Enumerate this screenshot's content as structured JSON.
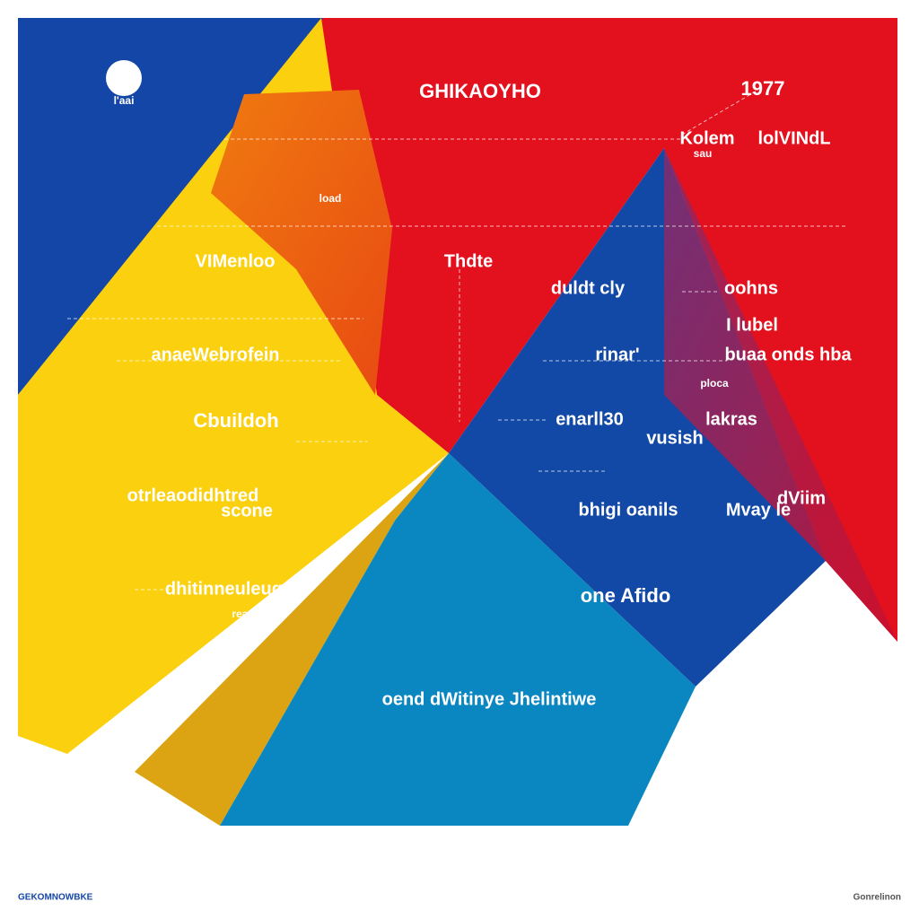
{
  "header": {
    "title": "GHIKAOYHO",
    "year": "1977",
    "logo_caption": "l'aai",
    "side_top": "Kolem",
    "side_sub": "sau",
    "side_right": "lolVINdL"
  },
  "labels": [
    "load",
    "VIMenloo",
    "Thdte",
    "duldt cly",
    "oohns",
    "I lubel",
    "anaeWebrofein",
    "rinar'",
    "buaa onds hba",
    "ploca",
    "Cbuildoh",
    "enarll30",
    "lakras",
    "vusish",
    "otrleaodidhtred",
    "scone",
    "bhigi oanils",
    "Mvay le",
    "dViim",
    "dhitinneuleugs",
    "reatiare",
    "one Afido",
    "oend dWitinye Jhelintiwe"
  ],
  "footer": {
    "left": "GEKOMNOWBKE",
    "right": "Gonrelinon"
  }
}
